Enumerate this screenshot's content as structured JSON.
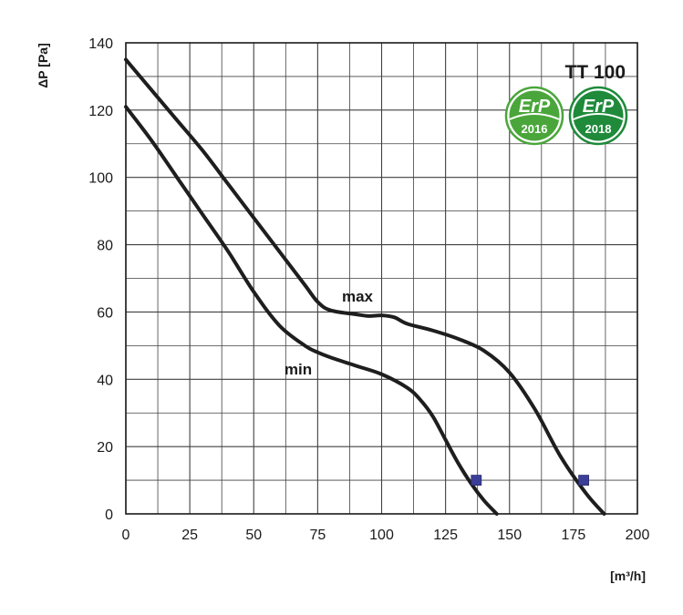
{
  "chart_data": {
    "type": "line",
    "title": "TT 100",
    "xlabel": "[m³/h]",
    "ylabel": "ΔP [Pa]",
    "xlim": [
      0,
      200
    ],
    "ylim": [
      0,
      140
    ],
    "xticks": [
      0,
      25,
      50,
      75,
      100,
      125,
      150,
      175,
      200
    ],
    "yticks": [
      0,
      20,
      40,
      60,
      80,
      100,
      120,
      140
    ],
    "grid": true,
    "series": [
      {
        "name": "max",
        "x": [
          0,
          10,
          20,
          30,
          40,
          50,
          60,
          70,
          75,
          80,
          90,
          95,
          100,
          105,
          110,
          120,
          130,
          140,
          150,
          160,
          170,
          180,
          187
        ],
        "y": [
          135,
          126,
          117,
          108,
          98,
          88,
          78,
          68,
          63,
          60.5,
          59.3,
          58.8,
          59,
          58.4,
          56.5,
          54.5,
          52,
          48.5,
          42,
          31,
          17,
          6,
          0
        ],
        "marker": {
          "x": 179,
          "y": 10
        }
      },
      {
        "name": "min",
        "x": [
          0,
          10,
          20,
          30,
          40,
          50,
          60,
          70,
          75,
          80,
          90,
          100,
          110,
          115,
          120,
          125,
          130,
          135,
          140,
          145
        ],
        "y": [
          121,
          111,
          100,
          89,
          78,
          66,
          56,
          50,
          48,
          46.5,
          44,
          41.5,
          37.5,
          34,
          29,
          22,
          15,
          9,
          4,
          0
        ],
        "marker": {
          "x": 137,
          "y": 10
        }
      }
    ],
    "colors": {
      "curve": "#1e1e1e",
      "grid": "#404040",
      "marker": "#3b3f98"
    }
  },
  "badges": [
    {
      "brand": "ErP",
      "year": "2016",
      "color": "#4aa63a",
      "icon": "erp-2016-badge-icon"
    },
    {
      "brand": "ErP",
      "year": "2018",
      "color": "#1e8a3a",
      "icon": "erp-2018-badge-icon"
    }
  ]
}
